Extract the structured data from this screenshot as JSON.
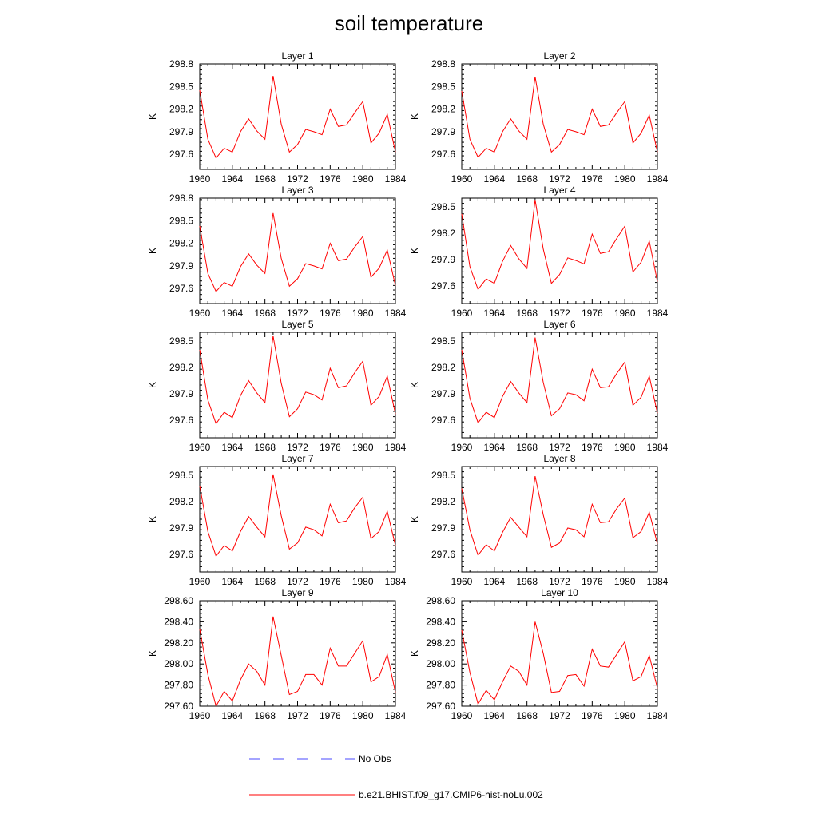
{
  "title": "soil temperature",
  "colors": {
    "model_line": "#ff0000",
    "obs_line": "#4a4aff",
    "axis": "#000000"
  },
  "legend": [
    {
      "label": "No Obs",
      "style": "dashed",
      "color": "#4a4aff"
    },
    {
      "label": "b.e21.BHIST.f09_g17.CMIP6-hist-noLu.002",
      "style": "solid",
      "color": "#ff0000"
    }
  ],
  "chart_data": [
    {
      "type": "line",
      "title": "Layer 1",
      "ylabel": "K",
      "xlim": [
        1960,
        1984
      ],
      "ylim": [
        297.4,
        298.8
      ],
      "x_ticks": [
        1960,
        1964,
        1968,
        1972,
        1976,
        1980,
        1984
      ],
      "x_tick_labels": [
        "1960",
        "1964",
        "1968",
        "1972",
        "1976",
        "1980",
        "1984"
      ],
      "y_ticks": [
        297.6,
        297.9,
        298.2,
        298.5,
        298.8
      ],
      "y_tick_labels": [
        "297.6",
        "297.9",
        "298.2",
        "298.5",
        "298.8"
      ],
      "x": [
        1960,
        1961,
        1962,
        1963,
        1964,
        1965,
        1966,
        1967,
        1968,
        1969,
        1970,
        1971,
        1972,
        1973,
        1974,
        1975,
        1976,
        1977,
        1978,
        1979,
        1980,
        1981,
        1982,
        1983,
        1984
      ],
      "series": [
        {
          "name": "b.e21.BHIST.f09_g17.CMIP6-hist-noLu.002",
          "values": [
            298.45,
            297.8,
            297.55,
            297.68,
            297.63,
            297.9,
            298.07,
            297.91,
            297.8,
            298.64,
            298.0,
            297.63,
            297.73,
            297.93,
            297.9,
            297.86,
            298.2,
            297.97,
            297.99,
            298.15,
            298.3,
            297.75,
            297.88,
            298.13,
            297.63
          ]
        }
      ]
    },
    {
      "type": "line",
      "title": "Layer 2",
      "ylabel": "K",
      "xlim": [
        1960,
        1984
      ],
      "ylim": [
        297.4,
        298.8
      ],
      "x_ticks": [
        1960,
        1964,
        1968,
        1972,
        1976,
        1980,
        1984
      ],
      "x_tick_labels": [
        "1960",
        "1964",
        "1968",
        "1972",
        "1976",
        "1980",
        "1984"
      ],
      "y_ticks": [
        297.6,
        297.9,
        298.2,
        298.5,
        298.8
      ],
      "y_tick_labels": [
        "297.6",
        "297.9",
        "298.2",
        "298.5",
        "298.8"
      ],
      "x": [
        1960,
        1961,
        1962,
        1963,
        1964,
        1965,
        1966,
        1967,
        1968,
        1969,
        1970,
        1971,
        1972,
        1973,
        1974,
        1975,
        1976,
        1977,
        1978,
        1979,
        1980,
        1981,
        1982,
        1983,
        1984
      ],
      "series": [
        {
          "name": "b.e21.BHIST.f09_g17.CMIP6-hist-noLu.002",
          "values": [
            298.44,
            297.8,
            297.56,
            297.68,
            297.63,
            297.9,
            298.07,
            297.91,
            297.8,
            298.63,
            298.0,
            297.63,
            297.73,
            297.93,
            297.9,
            297.86,
            298.2,
            297.97,
            297.99,
            298.15,
            298.3,
            297.75,
            297.88,
            298.12,
            297.63
          ]
        }
      ]
    },
    {
      "type": "line",
      "title": "Layer 3",
      "ylabel": "K",
      "xlim": [
        1960,
        1984
      ],
      "ylim": [
        297.4,
        298.8
      ],
      "x_ticks": [
        1960,
        1964,
        1968,
        1972,
        1976,
        1980,
        1984
      ],
      "x_tick_labels": [
        "1960",
        "1964",
        "1968",
        "1972",
        "1976",
        "1980",
        "1984"
      ],
      "y_ticks": [
        297.6,
        297.9,
        298.2,
        298.5,
        298.8
      ],
      "y_tick_labels": [
        "297.6",
        "297.9",
        "298.2",
        "298.5",
        "298.8"
      ],
      "x": [
        1960,
        1961,
        1962,
        1963,
        1964,
        1965,
        1966,
        1967,
        1968,
        1969,
        1970,
        1971,
        1972,
        1973,
        1974,
        1975,
        1976,
        1977,
        1978,
        1979,
        1980,
        1981,
        1982,
        1983,
        1984
      ],
      "series": [
        {
          "name": "b.e21.BHIST.f09_g17.CMIP6-hist-noLu.002",
          "values": [
            298.43,
            297.8,
            297.56,
            297.68,
            297.63,
            297.89,
            298.06,
            297.91,
            297.8,
            298.6,
            298.0,
            297.63,
            297.73,
            297.93,
            297.9,
            297.86,
            298.2,
            297.97,
            297.99,
            298.15,
            298.29,
            297.75,
            297.87,
            298.11,
            297.64
          ]
        }
      ]
    },
    {
      "type": "line",
      "title": "Layer 4",
      "ylabel": "K",
      "xlim": [
        1960,
        1984
      ],
      "ylim": [
        297.4,
        298.6
      ],
      "x_ticks": [
        1960,
        1964,
        1968,
        1972,
        1976,
        1980,
        1984
      ],
      "x_tick_labels": [
        "1960",
        "1964",
        "1968",
        "1972",
        "1976",
        "1980",
        "1984"
      ],
      "y_ticks": [
        297.6,
        297.9,
        298.2,
        298.5
      ],
      "y_tick_labels": [
        "297.6",
        "297.9",
        "298.2",
        "298.5"
      ],
      "x": [
        1960,
        1961,
        1962,
        1963,
        1964,
        1965,
        1966,
        1967,
        1968,
        1969,
        1970,
        1971,
        1972,
        1973,
        1974,
        1975,
        1976,
        1977,
        1978,
        1979,
        1980,
        1981,
        1982,
        1983,
        1984
      ],
      "series": [
        {
          "name": "b.e21.BHIST.f09_g17.CMIP6-hist-noLu.002",
          "values": [
            298.42,
            297.82,
            297.56,
            297.68,
            297.63,
            297.88,
            298.06,
            297.91,
            297.8,
            298.58,
            298.02,
            297.63,
            297.73,
            297.92,
            297.89,
            297.85,
            298.19,
            297.97,
            297.99,
            298.14,
            298.28,
            297.76,
            297.87,
            298.11,
            297.65
          ]
        }
      ]
    },
    {
      "type": "line",
      "title": "Layer 5",
      "ylabel": "K",
      "xlim": [
        1960,
        1984
      ],
      "ylim": [
        297.4,
        298.6
      ],
      "x_ticks": [
        1960,
        1964,
        1968,
        1972,
        1976,
        1980,
        1984
      ],
      "x_tick_labels": [
        "1960",
        "1964",
        "1968",
        "1972",
        "1976",
        "1980",
        "1984"
      ],
      "y_ticks": [
        297.6,
        297.9,
        298.2,
        298.5
      ],
      "y_tick_labels": [
        "297.6",
        "297.9",
        "298.2",
        "298.5"
      ],
      "x": [
        1960,
        1961,
        1962,
        1963,
        1964,
        1965,
        1966,
        1967,
        1968,
        1969,
        1970,
        1971,
        1972,
        1973,
        1974,
        1975,
        1976,
        1977,
        1978,
        1979,
        1980,
        1981,
        1982,
        1983,
        1984
      ],
      "series": [
        {
          "name": "b.e21.BHIST.f09_g17.CMIP6-hist-noLu.002",
          "values": [
            298.4,
            297.83,
            297.56,
            297.69,
            297.63,
            297.88,
            298.05,
            297.91,
            297.8,
            298.56,
            298.02,
            297.64,
            297.73,
            297.92,
            297.89,
            297.83,
            298.19,
            297.97,
            297.99,
            298.14,
            298.27,
            297.77,
            297.87,
            298.1,
            297.67
          ]
        }
      ]
    },
    {
      "type": "line",
      "title": "Layer 6",
      "ylabel": "K",
      "xlim": [
        1960,
        1984
      ],
      "ylim": [
        297.4,
        298.6
      ],
      "x_ticks": [
        1960,
        1964,
        1968,
        1972,
        1976,
        1980,
        1984
      ],
      "x_tick_labels": [
        "1960",
        "1964",
        "1968",
        "1972",
        "1976",
        "1980",
        "1984"
      ],
      "y_ticks": [
        297.6,
        297.9,
        298.2,
        298.5
      ],
      "y_tick_labels": [
        "297.6",
        "297.9",
        "298.2",
        "298.5"
      ],
      "x": [
        1960,
        1961,
        1962,
        1963,
        1964,
        1965,
        1966,
        1967,
        1968,
        1969,
        1970,
        1971,
        1972,
        1973,
        1974,
        1975,
        1976,
        1977,
        1978,
        1979,
        1980,
        1981,
        1982,
        1983,
        1984
      ],
      "series": [
        {
          "name": "b.e21.BHIST.f09_g17.CMIP6-hist-noLu.002",
          "values": [
            298.4,
            297.85,
            297.57,
            297.69,
            297.63,
            297.87,
            298.04,
            297.91,
            297.8,
            298.54,
            298.03,
            297.65,
            297.73,
            297.91,
            297.89,
            297.82,
            298.18,
            297.97,
            297.98,
            298.13,
            298.26,
            297.77,
            297.86,
            298.1,
            297.68
          ]
        }
      ]
    },
    {
      "type": "line",
      "title": "Layer 7",
      "ylabel": "K",
      "xlim": [
        1960,
        1984
      ],
      "ylim": [
        297.4,
        298.6
      ],
      "x_ticks": [
        1960,
        1964,
        1968,
        1972,
        1976,
        1980,
        1984
      ],
      "x_tick_labels": [
        "1960",
        "1964",
        "1968",
        "1972",
        "1976",
        "1980",
        "1984"
      ],
      "y_ticks": [
        297.6,
        297.9,
        298.2,
        298.5
      ],
      "y_tick_labels": [
        "297.6",
        "297.9",
        "298.2",
        "298.5"
      ],
      "x": [
        1960,
        1961,
        1962,
        1963,
        1964,
        1965,
        1966,
        1967,
        1968,
        1969,
        1970,
        1971,
        1972,
        1973,
        1974,
        1975,
        1976,
        1977,
        1978,
        1979,
        1980,
        1981,
        1982,
        1983,
        1984
      ],
      "series": [
        {
          "name": "b.e21.BHIST.f09_g17.CMIP6-hist-noLu.002",
          "values": [
            298.38,
            297.86,
            297.58,
            297.7,
            297.64,
            297.86,
            298.03,
            297.91,
            297.8,
            298.51,
            298.04,
            297.66,
            297.73,
            297.91,
            297.88,
            297.81,
            298.17,
            297.96,
            297.98,
            298.13,
            298.25,
            297.78,
            297.86,
            298.09,
            297.7
          ]
        }
      ]
    },
    {
      "type": "line",
      "title": "Layer 8",
      "ylabel": "K",
      "xlim": [
        1960,
        1984
      ],
      "ylim": [
        297.4,
        298.6
      ],
      "x_ticks": [
        1960,
        1964,
        1968,
        1972,
        1976,
        1980,
        1984
      ],
      "x_tick_labels": [
        "1960",
        "1964",
        "1968",
        "1972",
        "1976",
        "1980",
        "1984"
      ],
      "y_ticks": [
        297.6,
        297.9,
        298.2,
        298.5
      ],
      "y_tick_labels": [
        "297.6",
        "297.9",
        "298.2",
        "298.5"
      ],
      "x": [
        1960,
        1961,
        1962,
        1963,
        1964,
        1965,
        1966,
        1967,
        1968,
        1969,
        1970,
        1971,
        1972,
        1973,
        1974,
        1975,
        1976,
        1977,
        1978,
        1979,
        1980,
        1981,
        1982,
        1983,
        1984
      ],
      "series": [
        {
          "name": "b.e21.BHIST.f09_g17.CMIP6-hist-noLu.002",
          "values": [
            298.35,
            297.88,
            297.59,
            297.71,
            297.64,
            297.85,
            298.02,
            297.91,
            297.8,
            298.49,
            298.05,
            297.68,
            297.73,
            297.9,
            297.88,
            297.8,
            298.17,
            297.96,
            297.97,
            298.12,
            298.24,
            297.79,
            297.86,
            298.08,
            297.72
          ]
        }
      ]
    },
    {
      "type": "line",
      "title": "Layer 9",
      "ylabel": "K",
      "xlim": [
        1960,
        1984
      ],
      "ylim": [
        297.6,
        298.6
      ],
      "x_ticks": [
        1960,
        1964,
        1968,
        1972,
        1976,
        1980,
        1984
      ],
      "x_tick_labels": [
        "1960",
        "1964",
        "1968",
        "1972",
        "1976",
        "1980",
        "1984"
      ],
      "y_ticks": [
        297.6,
        297.8,
        298.0,
        298.2,
        298.4,
        298.6
      ],
      "y_tick_labels": [
        "297.60",
        "297.80",
        "298.00",
        "298.20",
        "298.40",
        "298.60"
      ],
      "x": [
        1960,
        1961,
        1962,
        1963,
        1964,
        1965,
        1966,
        1967,
        1968,
        1969,
        1970,
        1971,
        1972,
        1973,
        1974,
        1975,
        1976,
        1977,
        1978,
        1979,
        1980,
        1981,
        1982,
        1983,
        1984
      ],
      "series": [
        {
          "name": "b.e21.BHIST.f09_g17.CMIP6-hist-noLu.002",
          "values": [
            298.33,
            297.9,
            297.6,
            297.74,
            297.65,
            297.85,
            298.0,
            297.93,
            297.8,
            298.45,
            298.08,
            297.71,
            297.74,
            297.9,
            297.9,
            297.8,
            298.15,
            297.98,
            297.98,
            298.1,
            298.22,
            297.83,
            297.88,
            298.09,
            297.73
          ]
        }
      ]
    },
    {
      "type": "line",
      "title": "Layer 10",
      "ylabel": "K",
      "xlim": [
        1960,
        1984
      ],
      "ylim": [
        297.6,
        298.6
      ],
      "x_ticks": [
        1960,
        1964,
        1968,
        1972,
        1976,
        1980,
        1984
      ],
      "x_tick_labels": [
        "1960",
        "1964",
        "1968",
        "1972",
        "1976",
        "1980",
        "1984"
      ],
      "y_ticks": [
        297.6,
        297.8,
        298.0,
        298.2,
        298.4,
        298.6
      ],
      "y_tick_labels": [
        "297.60",
        "297.80",
        "298.00",
        "298.20",
        "298.40",
        "298.60"
      ],
      "x": [
        1960,
        1961,
        1962,
        1963,
        1964,
        1965,
        1966,
        1967,
        1968,
        1969,
        1970,
        1971,
        1972,
        1973,
        1974,
        1975,
        1976,
        1977,
        1978,
        1979,
        1980,
        1981,
        1982,
        1983,
        1984
      ],
      "series": [
        {
          "name": "b.e21.BHIST.f09_g17.CMIP6-hist-noLu.002",
          "values": [
            298.32,
            297.92,
            297.62,
            297.75,
            297.66,
            297.83,
            297.98,
            297.93,
            297.8,
            298.4,
            298.1,
            297.73,
            297.74,
            297.89,
            297.9,
            297.79,
            298.14,
            297.98,
            297.97,
            298.09,
            298.21,
            297.84,
            297.88,
            298.08,
            297.77
          ]
        }
      ]
    }
  ]
}
